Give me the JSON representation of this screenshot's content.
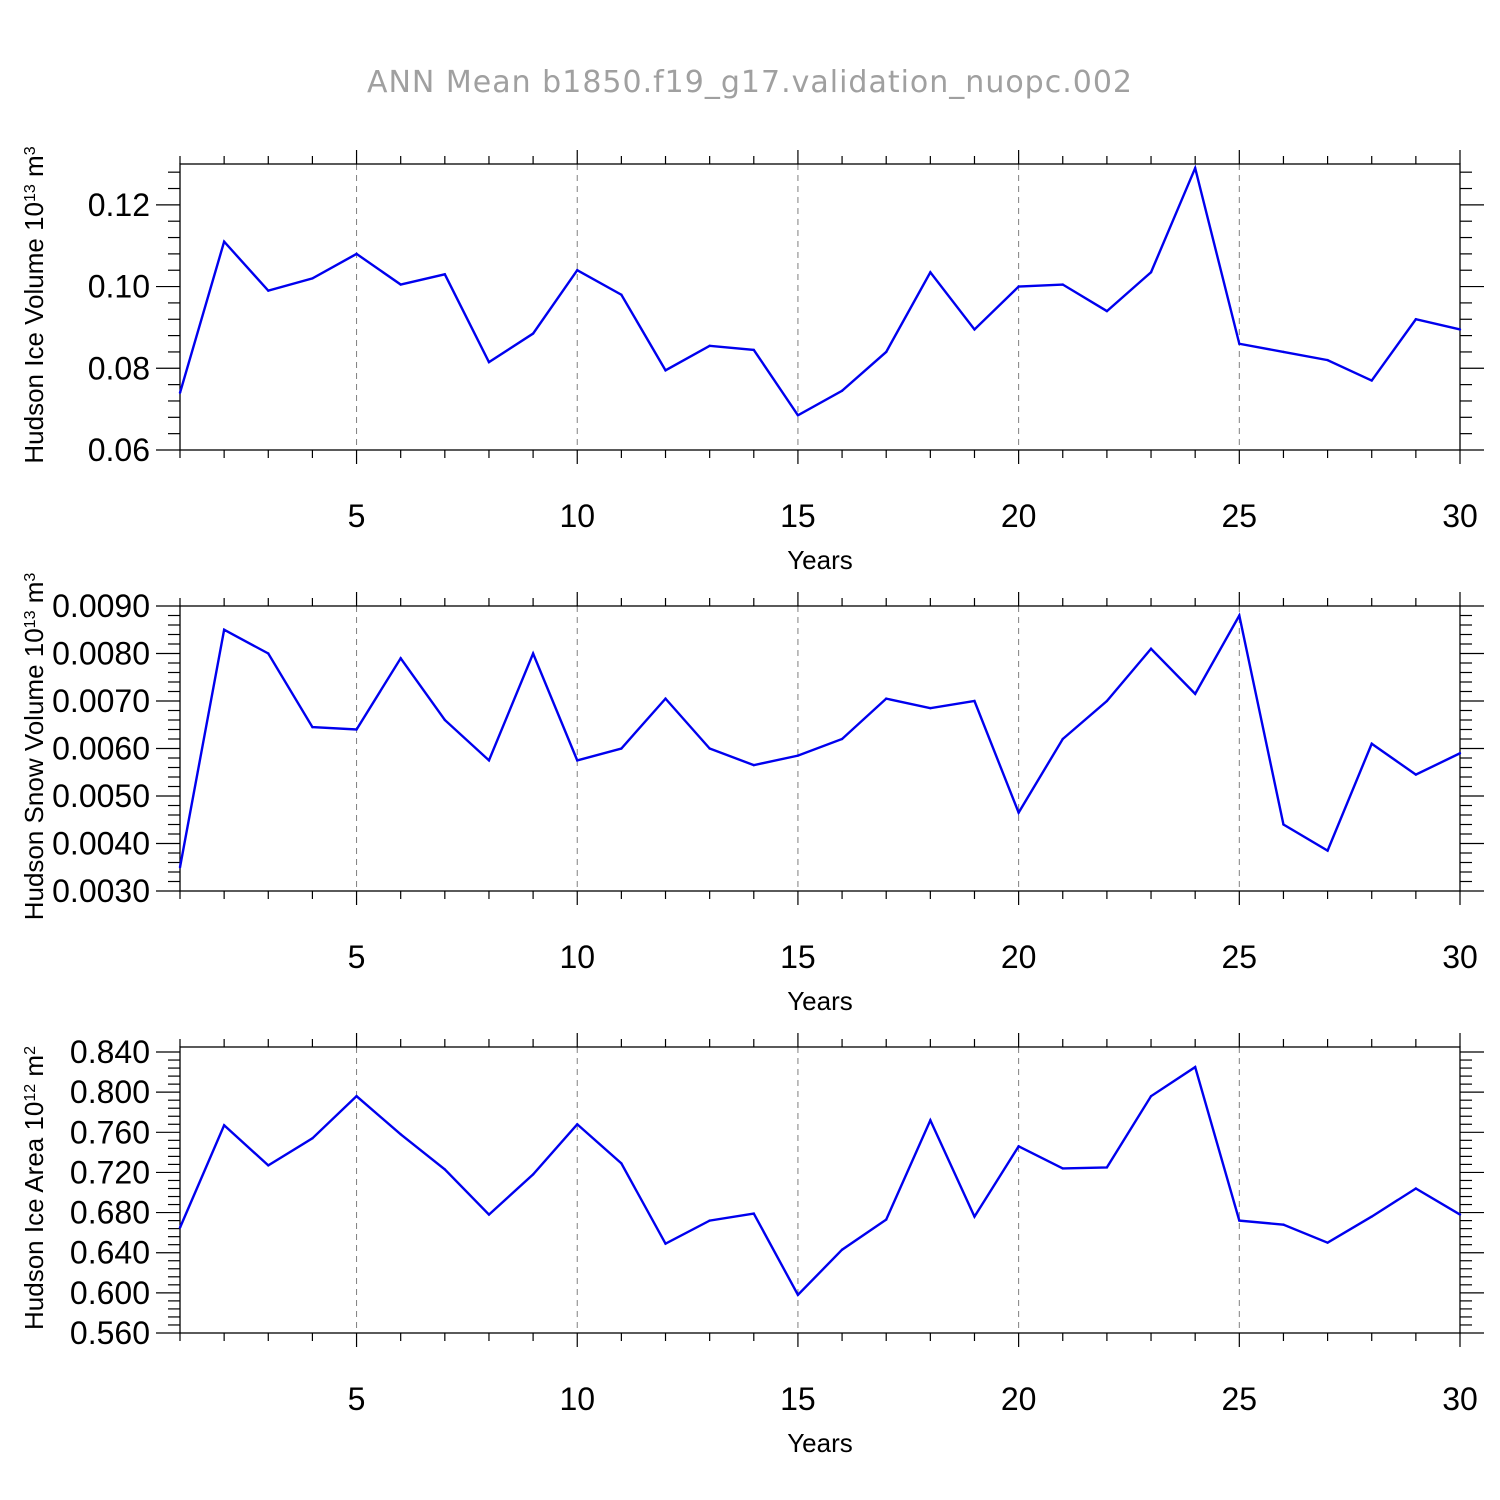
{
  "title": "ANN Mean b1850.f19_g17.validation_nuopc.002",
  "colors": {
    "line": "#0000ee",
    "axis": "#000000",
    "grid": "#808080",
    "title": "#a0a0a0"
  },
  "chart_data": [
    {
      "type": "line",
      "xlabel": "Years",
      "ylabel": {
        "main": "Hudson Ice Volume 10",
        "exp": "13",
        "unit": " m",
        "unit_exp": "3"
      },
      "xlim": [
        1,
        30
      ],
      "ylim": [
        0.06,
        0.13
      ],
      "xticks": [
        5,
        10,
        15,
        20,
        25,
        30
      ],
      "xtick_labels": [
        "5",
        "10",
        "15",
        "20",
        "25",
        "30"
      ],
      "yticks": [
        0.06,
        0.08,
        0.1,
        0.12
      ],
      "ytick_labels": [
        "0.06",
        "0.08",
        "0.10",
        "0.12"
      ],
      "grid": "vertical-dashed",
      "x": [
        1,
        2,
        3,
        4,
        5,
        6,
        7,
        8,
        9,
        10,
        11,
        12,
        13,
        14,
        15,
        16,
        17,
        18,
        19,
        20,
        21,
        22,
        23,
        24,
        25,
        26,
        27,
        28,
        29,
        30
      ],
      "y": [
        0.074,
        0.111,
        0.099,
        0.102,
        0.108,
        0.1005,
        0.103,
        0.0815,
        0.0885,
        0.104,
        0.098,
        0.0795,
        0.0855,
        0.0845,
        0.0685,
        0.0745,
        0.084,
        0.1035,
        0.0895,
        0.1,
        0.1005,
        0.094,
        0.1035,
        0.129,
        0.086,
        0.084,
        0.082,
        0.077,
        0.092,
        0.0895
      ]
    },
    {
      "type": "line",
      "xlabel": "Years",
      "ylabel": {
        "main": "Hudson Snow Volume 10",
        "exp": "13",
        "unit": " m",
        "unit_exp": "3"
      },
      "xlim": [
        1,
        30
      ],
      "ylim": [
        0.003,
        0.009
      ],
      "xticks": [
        5,
        10,
        15,
        20,
        25,
        30
      ],
      "xtick_labels": [
        "5",
        "10",
        "15",
        "20",
        "25",
        "30"
      ],
      "yticks": [
        0.003,
        0.004,
        0.005,
        0.006,
        0.007,
        0.008,
        0.009
      ],
      "ytick_labels": [
        "0.0030",
        "0.0040",
        "0.0050",
        "0.0060",
        "0.0070",
        "0.0080",
        "0.0090"
      ],
      "grid": "vertical-dashed",
      "x": [
        1,
        2,
        3,
        4,
        5,
        6,
        7,
        8,
        9,
        10,
        11,
        12,
        13,
        14,
        15,
        16,
        17,
        18,
        19,
        20,
        21,
        22,
        23,
        24,
        25,
        26,
        27,
        28,
        29,
        30
      ],
      "y": [
        0.0035,
        0.0085,
        0.008,
        0.00645,
        0.0064,
        0.0079,
        0.0066,
        0.00575,
        0.008,
        0.00575,
        0.006,
        0.00705,
        0.006,
        0.00565,
        0.00585,
        0.0062,
        0.00705,
        0.00685,
        0.007,
        0.00465,
        0.0062,
        0.007,
        0.0081,
        0.00715,
        0.0088,
        0.0044,
        0.00385,
        0.0061,
        0.00545,
        0.0059
      ]
    },
    {
      "type": "line",
      "xlabel": "Years",
      "ylabel": {
        "main": "Hudson Ice Area 10",
        "exp": "12",
        "unit": " m",
        "unit_exp": "2"
      },
      "xlim": [
        1,
        30
      ],
      "ylim": [
        0.56,
        0.845
      ],
      "xticks": [
        5,
        10,
        15,
        20,
        25,
        30
      ],
      "xtick_labels": [
        "5",
        "10",
        "15",
        "20",
        "25",
        "30"
      ],
      "yticks": [
        0.56,
        0.6,
        0.64,
        0.68,
        0.72,
        0.76,
        0.8,
        0.84
      ],
      "ytick_labels": [
        "0.560",
        "0.600",
        "0.640",
        "0.680",
        "0.720",
        "0.760",
        "0.800",
        "0.840"
      ],
      "grid": "vertical-dashed",
      "x": [
        1,
        2,
        3,
        4,
        5,
        6,
        7,
        8,
        9,
        10,
        11,
        12,
        13,
        14,
        15,
        16,
        17,
        18,
        19,
        20,
        21,
        22,
        23,
        24,
        25,
        26,
        27,
        28,
        29,
        30
      ],
      "y": [
        0.665,
        0.767,
        0.727,
        0.754,
        0.796,
        0.758,
        0.723,
        0.678,
        0.718,
        0.768,
        0.729,
        0.649,
        0.672,
        0.679,
        0.598,
        0.643,
        0.673,
        0.772,
        0.676,
        0.746,
        0.724,
        0.725,
        0.796,
        0.825,
        0.672,
        0.668,
        0.65,
        0.676,
        0.704,
        0.678
      ]
    }
  ]
}
